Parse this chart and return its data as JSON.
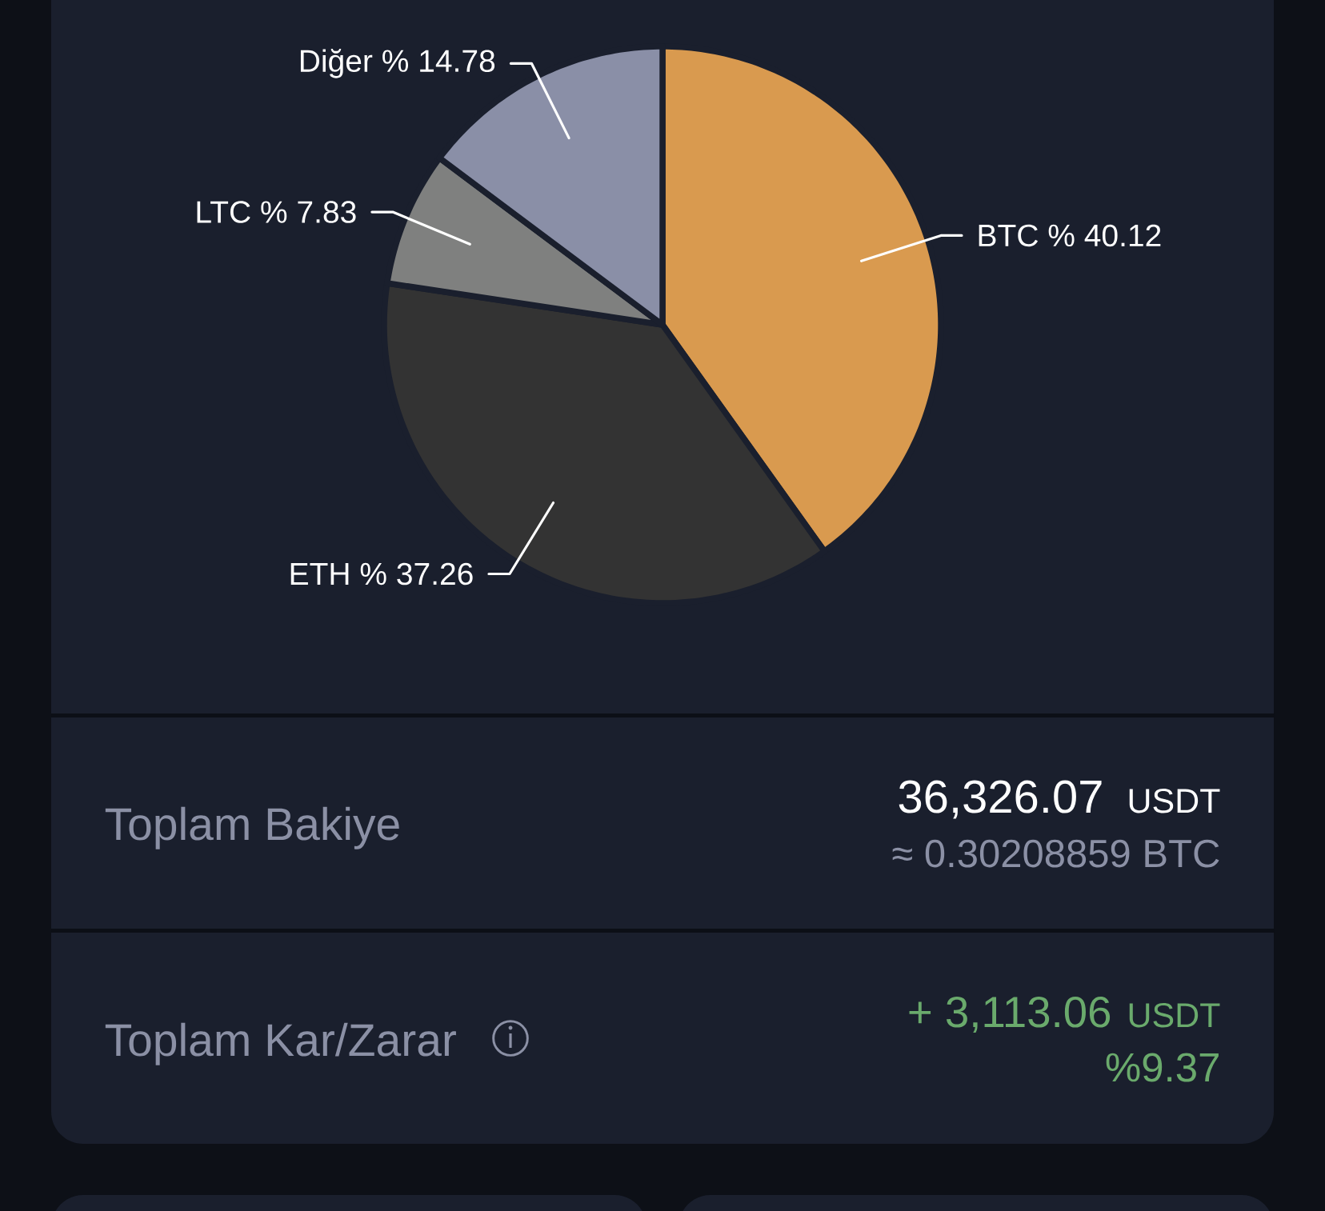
{
  "chart_data": [
    {
      "type": "pie",
      "categories": [
        "BTC",
        "ETH",
        "LTC",
        "Diğer"
      ],
      "values": [
        40.12,
        37.26,
        7.83,
        14.78
      ],
      "colors": [
        "#d99a4f",
        "#333333",
        "#7f807f",
        "#8a8fa7"
      ],
      "value_labels": [
        "% 40.12",
        "% 37.26",
        "% 7.83",
        "% 14.78"
      ]
    },
    {
      "type": "other",
      "annotations": [
        "Toplam Bakiye",
        "36,326.07",
        "USDT",
        "≈ 0.30208859 BTC",
        "Toplam Kar/Zarar",
        "+ 3,113.06",
        "USDT",
        "%9.37"
      ]
    }
  ]
}
